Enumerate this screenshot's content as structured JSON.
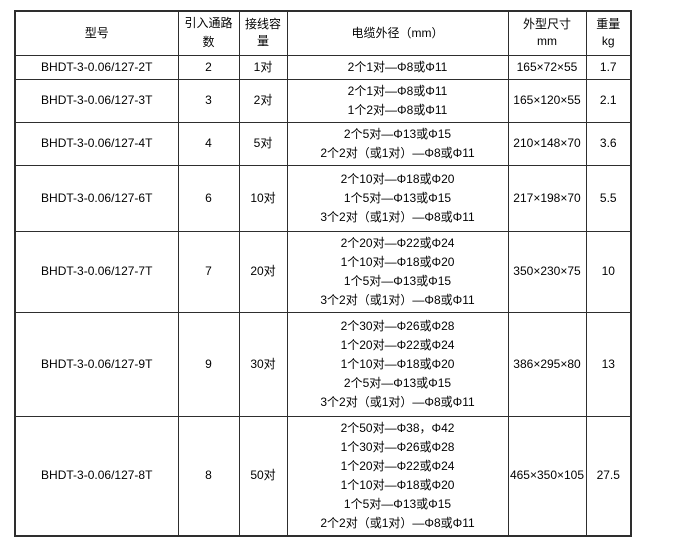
{
  "page": {
    "background_color": "#ffffff",
    "border_color": "#2e2e2e",
    "text_color": "#000000"
  },
  "table": {
    "headers": {
      "model": "型号",
      "channels": "引入通路数",
      "capacity_lines": [
        "接线容",
        "量"
      ],
      "cable": "电缆外径（mm）",
      "dimensions_lines": [
        "外型尺寸",
        "mm"
      ],
      "weight_lines": [
        "重量",
        "kg"
      ]
    },
    "rows": [
      {
        "model": "BHDT-3-0.06/127-2T",
        "channels": "2",
        "capacity": "1对",
        "cable_lines": [
          "2个1对—Φ8或Φ11"
        ],
        "dimensions": "165×72×55",
        "weight": "1.7"
      },
      {
        "model": "BHDT-3-0.06/127-3T",
        "channels": "3",
        "capacity": "2对",
        "cable_lines": [
          "2个1对—Φ8或Φ11",
          "1个2对—Φ8或Φ11"
        ],
        "dimensions": "165×120×55",
        "weight": "2.1"
      },
      {
        "model": "BHDT-3-0.06/127-4T",
        "channels": "4",
        "capacity": "5对",
        "cable_lines": [
          "2个5对—Φ13或Φ15",
          "2个2对（或1对）—Φ8或Φ11"
        ],
        "dimensions": "210×148×70",
        "weight": "3.6"
      },
      {
        "model": "BHDT-3-0.06/127-6T",
        "channels": "6",
        "capacity": "10对",
        "cable_lines": [
          "2个10对—Φ18或Φ20",
          "1个5对—Φ13或Φ15",
          "3个2对（或1对）—Φ8或Φ11"
        ],
        "dimensions": "217×198×70",
        "weight": "5.5"
      },
      {
        "model": "BHDT-3-0.06/127-7T",
        "channels": "7",
        "capacity": "20对",
        "cable_lines": [
          "2个20对—Φ22或Φ24",
          "1个10对—Φ18或Φ20",
          "1个5对—Φ13或Φ15",
          "3个2对（或1对）—Φ8或Φ11"
        ],
        "dimensions": "350×230×75",
        "weight": "10"
      },
      {
        "model": "BHDT-3-0.06/127-9T",
        "channels": "9",
        "capacity": "30对",
        "cable_lines": [
          "2个30对—Φ26或Φ28",
          "1个20对—Φ22或Φ24",
          "1个10对—Φ18或Φ20",
          "2个5对—Φ13或Φ15",
          "3个2对（或1对）—Φ8或Φ11"
        ],
        "dimensions": "386×295×80",
        "weight": "13"
      },
      {
        "model": "BHDT-3-0.06/127-8T",
        "channels": "8",
        "capacity": "50对",
        "cable_lines": [
          "2个50对—Φ38，Φ42",
          "1个30对—Φ26或Φ28",
          "1个20对—Φ22或Φ24",
          "1个10对—Φ18或Φ20",
          "1个5对—Φ13或Φ15",
          "2个2对（或1对）—Φ8或Φ11"
        ],
        "dimensions": "465×350×105",
        "weight": "27.5"
      }
    ]
  }
}
